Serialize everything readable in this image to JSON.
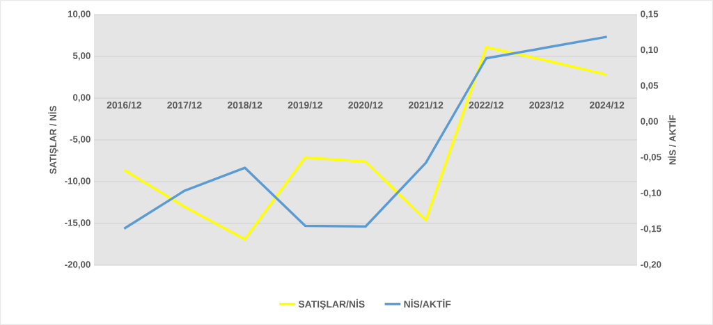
{
  "chart_data": {
    "type": "line",
    "categories": [
      "2016/12",
      "2017/12",
      "2018/12",
      "2019/12",
      "2020/12",
      "2021/12",
      "2022/12",
      "2023/12",
      "2024/12"
    ],
    "series": [
      {
        "name": "SATIŞLAR/NİS",
        "color": "#ffff00",
        "values": [
          -8.6,
          -13.0,
          -16.9,
          -7.1,
          -7.6,
          -14.6,
          6.1,
          4.5,
          2.8
        ]
      },
      {
        "name": "NİS/AKTİF",
        "color": "#5b9bd5",
        "axis": "y2",
        "values": [
          -0.149,
          -0.096,
          -0.064,
          -0.145,
          -0.146,
          -0.057,
          0.089,
          0.104,
          0.119
        ]
      }
    ],
    "ylabel": "SATIŞLAR / NİS",
    "y2label": "NİS / AKTİF",
    "ylim": [
      -20,
      10
    ],
    "yticks": [
      {
        "value": -20,
        "label": "-20,00"
      },
      {
        "value": -15,
        "label": "-15,00"
      },
      {
        "value": -10,
        "label": "-10,00"
      },
      {
        "value": -5,
        "label": "-5,00"
      },
      {
        "value": 0,
        "label": "0,00"
      },
      {
        "value": 5,
        "label": "5,00"
      },
      {
        "value": 10,
        "label": "10,00"
      }
    ],
    "y2lim": [
      -0.2,
      0.15
    ],
    "y2ticks": [
      {
        "value": -0.2,
        "label": "-0,20"
      },
      {
        "value": -0.15,
        "label": "-0,15"
      },
      {
        "value": -0.1,
        "label": "-0,10"
      },
      {
        "value": -0.05,
        "label": "-0,05"
      },
      {
        "value": 0,
        "label": "0,00"
      },
      {
        "value": 0.05,
        "label": "0,05"
      },
      {
        "value": 0.1,
        "label": "0,10"
      },
      {
        "value": 0.15,
        "label": "0,15"
      }
    ],
    "grid": "y",
    "legend": "bottom",
    "marker": "none",
    "line_style": "solid"
  }
}
